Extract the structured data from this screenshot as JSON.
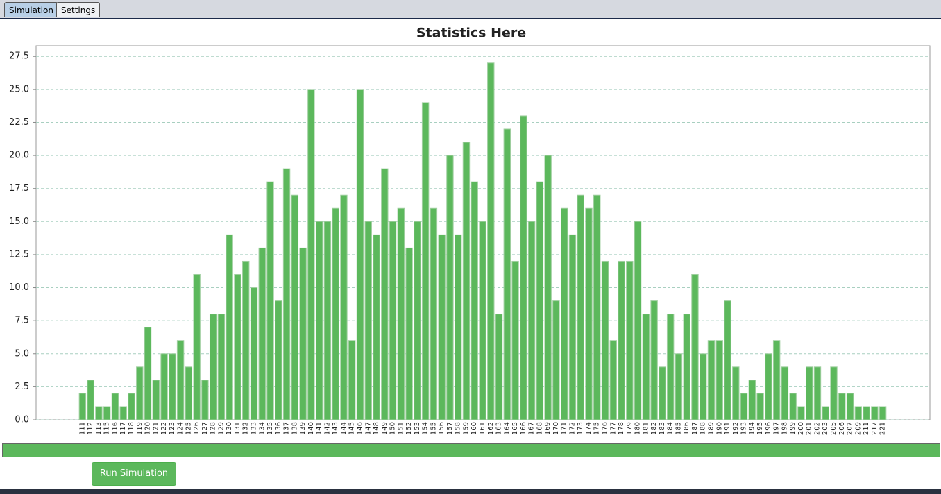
{
  "tabs": [
    "Simulation",
    "Settings"
  ],
  "button": "Run Simulation",
  "chart_data": {
    "type": "bar",
    "title": "Statistics Here",
    "color": "#5cb85c",
    "grid": true,
    "categories": [
      "111",
      "112",
      "113",
      "115",
      "116",
      "117",
      "118",
      "119",
      "120",
      "121",
      "122",
      "123",
      "124",
      "125",
      "126",
      "127",
      "128",
      "129",
      "130",
      "131",
      "132",
      "133",
      "134",
      "135",
      "136",
      "137",
      "138",
      "139",
      "140",
      "141",
      "142",
      "143",
      "144",
      "145",
      "146",
      "147",
      "148",
      "149",
      "150",
      "151",
      "152",
      "153",
      "154",
      "155",
      "156",
      "157",
      "158",
      "159",
      "160",
      "161",
      "162",
      "163",
      "164",
      "165",
      "166",
      "167",
      "168",
      "169",
      "170",
      "171",
      "172",
      "173",
      "174",
      "175",
      "176",
      "177",
      "178",
      "179",
      "180",
      "181",
      "182",
      "183",
      "184",
      "185",
      "186",
      "187",
      "188",
      "189",
      "190",
      "191",
      "192",
      "193",
      "194",
      "195",
      "196",
      "197",
      "198",
      "199",
      "200",
      "201",
      "202",
      "203",
      "205",
      "206",
      "207",
      "209",
      "211",
      "217",
      "221"
    ],
    "values": [
      2,
      3,
      1,
      1,
      2,
      1,
      2,
      4,
      7,
      3,
      5,
      5,
      6,
      4,
      11,
      3,
      8,
      8,
      14,
      11,
      12,
      10,
      13,
      18,
      9,
      19,
      17,
      13,
      25,
      15,
      15,
      16,
      17,
      6,
      25,
      15,
      14,
      19,
      15,
      16,
      13,
      15,
      24,
      16,
      14,
      20,
      14,
      21,
      18,
      15,
      27,
      8,
      22,
      12,
      23,
      15,
      18,
      20,
      9,
      16,
      14,
      17,
      16,
      17,
      12,
      6,
      12,
      12,
      15,
      8,
      9,
      4,
      8,
      5,
      8,
      11,
      5,
      6,
      6,
      9,
      4,
      2,
      3,
      2,
      5,
      6,
      4,
      2,
      1,
      4,
      4,
      1,
      4,
      2,
      2,
      1,
      1,
      1,
      1
    ],
    "ylim": [
      0,
      28.3
    ],
    "yticks": [
      {
        "value": 0,
        "label": "0.0"
      },
      {
        "value": 2.5,
        "label": "2.5"
      },
      {
        "value": 5,
        "label": "5.0"
      },
      {
        "value": 7.5,
        "label": "7.5"
      },
      {
        "value": 10,
        "label": "10.0"
      },
      {
        "value": 12.5,
        "label": "12.5"
      },
      {
        "value": 15,
        "label": "15.0"
      },
      {
        "value": 17.5,
        "label": "17.5"
      },
      {
        "value": 20,
        "label": "20.0"
      },
      {
        "value": 22.5,
        "label": "22.5"
      },
      {
        "value": 25,
        "label": "25.0"
      },
      {
        "value": 27.5,
        "label": "27.5"
      }
    ]
  }
}
